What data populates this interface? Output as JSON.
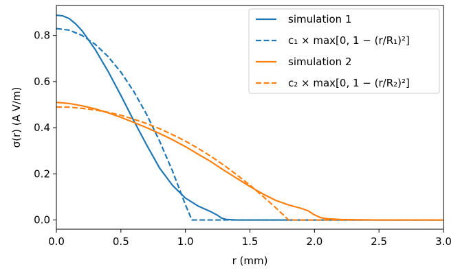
{
  "chart_data": {
    "type": "line",
    "xlabel": "r (mm)",
    "ylabel": "σ(r) (A V/m)",
    "xlim": [
      0,
      3.0
    ],
    "ylim": [
      -0.04,
      0.93
    ],
    "xticks": [
      0.0,
      0.5,
      1.0,
      1.5,
      2.0,
      2.5,
      3.0
    ],
    "xtick_labels": [
      "0.0",
      "0.5",
      "1.0",
      "1.5",
      "2.0",
      "2.5",
      "3.0"
    ],
    "yticks": [
      0.0,
      0.2,
      0.4,
      0.6,
      0.8
    ],
    "ytick_labels": [
      "0.0",
      "0.2",
      "0.4",
      "0.6",
      "0.8"
    ],
    "grid": false,
    "legend_position": "top-right",
    "series": [
      {
        "name": "simulation 1",
        "color": "#1f77b4",
        "dash": "solid",
        "x": [
          0.0,
          0.05,
          0.1,
          0.15,
          0.2,
          0.3,
          0.4,
          0.5,
          0.6,
          0.7,
          0.8,
          0.9,
          1.0,
          1.1,
          1.2,
          1.25,
          1.28,
          1.32,
          1.4,
          1.6,
          2.0,
          2.5,
          3.0
        ],
        "y": [
          0.888,
          0.885,
          0.873,
          0.85,
          0.82,
          0.74,
          0.645,
          0.54,
          0.43,
          0.325,
          0.225,
          0.15,
          0.095,
          0.06,
          0.035,
          0.02,
          0.008,
          0.002,
          0.0,
          0.0,
          0.0,
          0.0,
          0.0
        ]
      },
      {
        "name": "c₁ × max[0, 1 − (r/R₁)²]",
        "color": "#1f77b4",
        "dash": "dashed",
        "x": [
          0.0,
          0.1,
          0.2,
          0.3,
          0.4,
          0.5,
          0.6,
          0.7,
          0.8,
          0.9,
          1.0,
          1.05,
          1.1,
          1.5,
          2.0,
          2.5,
          3.0
        ],
        "y": [
          0.83,
          0.823,
          0.8,
          0.762,
          0.709,
          0.641,
          0.557,
          0.457,
          0.342,
          0.212,
          0.066,
          0.0,
          0.0,
          0.0,
          0.0,
          0.0,
          0.0
        ]
      },
      {
        "name": "simulation 2",
        "color": "#ff7f0e",
        "dash": "solid",
        "x": [
          0.0,
          0.1,
          0.2,
          0.3,
          0.4,
          0.5,
          0.6,
          0.7,
          0.8,
          0.9,
          1.0,
          1.1,
          1.2,
          1.3,
          1.4,
          1.5,
          1.6,
          1.7,
          1.8,
          1.9,
          1.95,
          2.0,
          2.05,
          2.1,
          2.2,
          2.5,
          3.0
        ],
        "y": [
          0.51,
          0.505,
          0.495,
          0.482,
          0.465,
          0.445,
          0.423,
          0.4,
          0.375,
          0.348,
          0.318,
          0.285,
          0.252,
          0.215,
          0.18,
          0.145,
          0.113,
          0.085,
          0.065,
          0.05,
          0.04,
          0.022,
          0.01,
          0.005,
          0.002,
          0.0,
          0.0
        ]
      },
      {
        "name": "c₂ × max[0, 1 − (r/R₂)²]",
        "color": "#ff7f0e",
        "dash": "dashed",
        "x": [
          0.0,
          0.1,
          0.2,
          0.3,
          0.4,
          0.5,
          0.6,
          0.7,
          0.8,
          0.9,
          1.0,
          1.1,
          1.2,
          1.3,
          1.4,
          1.5,
          1.6,
          1.7,
          1.8,
          1.82,
          1.9,
          2.0,
          2.5,
          3.0
        ],
        "y": [
          0.49,
          0.489,
          0.484,
          0.477,
          0.467,
          0.454,
          0.437,
          0.418,
          0.396,
          0.37,
          0.342,
          0.31,
          0.275,
          0.237,
          0.195,
          0.151,
          0.103,
          0.053,
          0.0,
          0.0,
          0.0,
          0.0,
          0.0,
          0.0
        ]
      }
    ]
  }
}
